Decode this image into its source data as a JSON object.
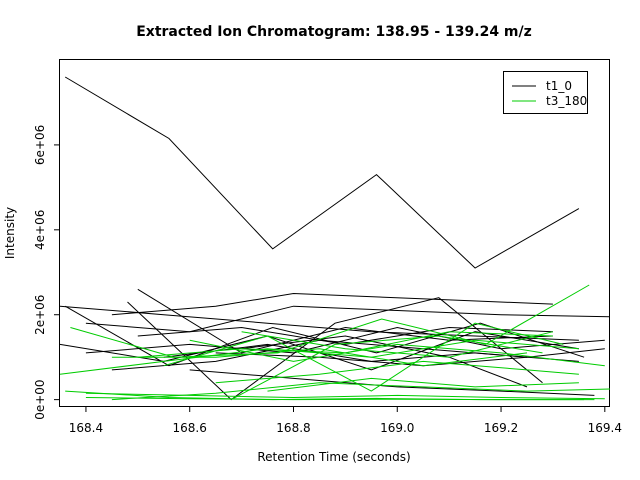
{
  "chart_data": {
    "type": "line",
    "title": "Extracted Ion Chromatogram: 138.95 - 139.24 m/z",
    "xlabel": "Retention Time (seconds)",
    "ylabel": "Intensity",
    "xlim": [
      168.35,
      169.41
    ],
    "ylim": [
      -150000,
      8000000
    ],
    "x_ticks": [
      168.4,
      168.6,
      168.8,
      169.0,
      169.2,
      169.4
    ],
    "x_tick_labels": [
      "168.4",
      "168.6",
      "168.8",
      "169.0",
      "169.2",
      "169.4"
    ],
    "y_ticks": [
      0,
      2000000,
      4000000,
      6000000
    ],
    "y_tick_labels": [
      "0e+00",
      "2e+06",
      "4e+06",
      "6e+06"
    ],
    "grid": false,
    "legend_position": "top-right",
    "legend": [
      {
        "label": "t1_0",
        "color": "#000000"
      },
      {
        "label": "t3_180",
        "color": "#00cc00"
      }
    ],
    "series": [
      {
        "group": "t1_0",
        "color": "#000000",
        "points": [
          [
            168.36,
            7600000
          ],
          [
            168.56,
            6150000
          ],
          [
            168.76,
            3550000
          ],
          [
            168.96,
            5300000
          ],
          [
            169.15,
            3100000
          ],
          [
            169.35,
            4500000
          ]
        ]
      },
      {
        "group": "t1_0",
        "color": "#000000",
        "points": [
          [
            168.35,
            2200000
          ],
          [
            168.55,
            2000000
          ],
          [
            168.75,
            1800000
          ],
          [
            168.95,
            1600000
          ],
          [
            169.15,
            1500000
          ],
          [
            169.35,
            1400000
          ]
        ]
      },
      {
        "group": "t1_0",
        "color": "#000000",
        "points": [
          [
            168.36,
            2200000
          ],
          [
            168.56,
            800000
          ],
          [
            168.76,
            1700000
          ],
          [
            168.96,
            1100000
          ],
          [
            169.16,
            1800000
          ],
          [
            169.36,
            1000000
          ]
        ]
      },
      {
        "group": "t1_0",
        "color": "#000000",
        "points": [
          [
            168.35,
            1300000
          ],
          [
            168.55,
            900000
          ],
          [
            168.75,
            1500000
          ],
          [
            168.95,
            700000
          ],
          [
            169.15,
            1600000
          ],
          [
            169.35,
            1200000
          ]
        ]
      },
      {
        "group": "t1_0",
        "color": "#000000",
        "points": [
          [
            168.4,
            1800000
          ],
          [
            168.6,
            1600000
          ],
          [
            168.8,
            2200000
          ],
          [
            169.0,
            2100000
          ],
          [
            169.2,
            2000000
          ],
          [
            169.41,
            1950000
          ]
        ]
      },
      {
        "group": "t1_0",
        "color": "#000000",
        "points": [
          [
            168.45,
            2000000
          ],
          [
            168.65,
            2200000
          ],
          [
            168.8,
            2500000
          ],
          [
            169.1,
            2350000
          ],
          [
            169.3,
            2250000
          ]
        ]
      },
      {
        "group": "t1_0",
        "color": "#000000",
        "points": [
          [
            168.5,
            2600000
          ],
          [
            168.7,
            1100000
          ],
          [
            168.9,
            1700000
          ],
          [
            169.1,
            1400000
          ],
          [
            169.3,
            1500000
          ]
        ]
      },
      {
        "group": "t1_0",
        "color": "#000000",
        "points": [
          [
            168.48,
            2300000
          ],
          [
            168.68,
            0
          ],
          [
            168.88,
            1800000
          ],
          [
            169.08,
            2400000
          ],
          [
            169.28,
            400000
          ]
        ]
      },
      {
        "group": "t1_0",
        "color": "#000000",
        "points": [
          [
            168.4,
            1100000
          ],
          [
            168.6,
            1300000
          ],
          [
            168.8,
            1100000
          ],
          [
            169.0,
            1700000
          ],
          [
            169.2,
            1200000
          ],
          [
            169.4,
            1400000
          ]
        ]
      },
      {
        "group": "t1_0",
        "color": "#000000",
        "points": [
          [
            168.45,
            700000
          ],
          [
            168.65,
            900000
          ],
          [
            168.85,
            1400000
          ],
          [
            169.05,
            1200000
          ],
          [
            169.25,
            1000000
          ]
        ]
      },
      {
        "group": "t1_0",
        "color": "#000000",
        "points": [
          [
            168.5,
            1500000
          ],
          [
            168.7,
            1700000
          ],
          [
            168.9,
            1300000
          ],
          [
            169.1,
            1700000
          ],
          [
            169.3,
            1600000
          ]
        ]
      },
      {
        "group": "t1_0",
        "color": "#000000",
        "points": [
          [
            168.55,
            1000000
          ],
          [
            168.75,
            1300000
          ],
          [
            168.95,
            900000
          ],
          [
            169.15,
            1100000
          ],
          [
            169.35,
            900000
          ]
        ]
      },
      {
        "group": "t1_0",
        "color": "#000000",
        "points": [
          [
            168.6,
            700000
          ],
          [
            168.8,
            500000
          ],
          [
            169.0,
            300000
          ],
          [
            169.2,
            200000
          ],
          [
            169.38,
            100000
          ]
        ]
      },
      {
        "group": "t1_0",
        "color": "#000000",
        "points": [
          [
            168.65,
            1100000
          ],
          [
            168.85,
            1000000
          ],
          [
            169.05,
            800000
          ],
          [
            169.25,
            1000000
          ],
          [
            169.4,
            1200000
          ]
        ]
      },
      {
        "group": "t1_0",
        "color": "#000000",
        "points": [
          [
            168.7,
            1200000
          ],
          [
            168.9,
            1500000
          ],
          [
            169.1,
            1000000
          ],
          [
            169.25,
            300000
          ]
        ]
      },
      {
        "group": "t3_180",
        "color": "#00cc00",
        "points": [
          [
            168.37,
            1700000
          ],
          [
            168.57,
            1000000
          ],
          [
            168.77,
            1100000
          ],
          [
            168.97,
            1900000
          ],
          [
            169.17,
            1300000
          ],
          [
            169.37,
            2700000
          ]
        ]
      },
      {
        "group": "t3_180",
        "color": "#00cc00",
        "points": [
          [
            168.35,
            600000
          ],
          [
            168.55,
            900000
          ],
          [
            168.75,
            1200000
          ],
          [
            168.95,
            1000000
          ],
          [
            169.15,
            1400000
          ],
          [
            169.35,
            1200000
          ]
        ]
      },
      {
        "group": "t3_180",
        "color": "#00cc00",
        "points": [
          [
            168.4,
            150000
          ],
          [
            168.6,
            100000
          ],
          [
            168.8,
            50000
          ],
          [
            169.0,
            100000
          ],
          [
            169.2,
            50000
          ],
          [
            169.4,
            20000
          ]
        ]
      },
      {
        "group": "t3_180",
        "color": "#00cc00",
        "points": [
          [
            168.36,
            200000
          ],
          [
            168.56,
            50000
          ],
          [
            168.76,
            0
          ],
          [
            168.96,
            30000
          ],
          [
            169.16,
            0
          ],
          [
            169.36,
            0
          ]
        ]
      },
      {
        "group": "t3_180",
        "color": "#00cc00",
        "points": [
          [
            168.45,
            0
          ],
          [
            168.65,
            150000
          ],
          [
            168.85,
            400000
          ],
          [
            169.05,
            300000
          ],
          [
            169.25,
            200000
          ],
          [
            169.41,
            250000
          ]
        ]
      },
      {
        "group": "t3_180",
        "color": "#00cc00",
        "points": [
          [
            168.5,
            1000000
          ],
          [
            168.7,
            1200000
          ],
          [
            168.9,
            1100000
          ],
          [
            169.1,
            1600000
          ],
          [
            169.3,
            1500000
          ]
        ]
      },
      {
        "group": "t3_180",
        "color": "#00cc00",
        "points": [
          [
            168.55,
            800000
          ],
          [
            168.75,
            1500000
          ],
          [
            168.95,
            200000
          ],
          [
            169.15,
            1800000
          ],
          [
            169.32,
            1300000
          ]
        ]
      },
      {
        "group": "t3_180",
        "color": "#00cc00",
        "points": [
          [
            168.6,
            1400000
          ],
          [
            168.8,
            900000
          ],
          [
            169.0,
            1300000
          ],
          [
            169.2,
            1100000
          ],
          [
            169.4,
            800000
          ]
        ]
      },
      {
        "group": "t3_180",
        "color": "#00cc00",
        "points": [
          [
            168.65,
            400000
          ],
          [
            168.85,
            600000
          ],
          [
            169.05,
            900000
          ],
          [
            169.25,
            700000
          ],
          [
            169.35,
            600000
          ]
        ]
      },
      {
        "group": "t3_180",
        "color": "#00cc00",
        "points": [
          [
            168.68,
            0
          ],
          [
            168.88,
            1300000
          ],
          [
            169.08,
            1500000
          ],
          [
            169.28,
            1100000
          ]
        ]
      },
      {
        "group": "t3_180",
        "color": "#00cc00",
        "points": [
          [
            168.7,
            1600000
          ],
          [
            168.9,
            1200000
          ],
          [
            169.1,
            1000000
          ],
          [
            169.3,
            1600000
          ]
        ]
      },
      {
        "group": "t3_180",
        "color": "#00cc00",
        "points": [
          [
            168.75,
            200000
          ],
          [
            168.95,
            500000
          ],
          [
            169.15,
            300000
          ],
          [
            169.35,
            400000
          ]
        ]
      },
      {
        "group": "t3_180",
        "color": "#00cc00",
        "points": [
          [
            168.45,
            1000000
          ],
          [
            168.65,
            1000000
          ],
          [
            168.85,
            1200000
          ],
          [
            169.05,
            800000
          ],
          [
            169.25,
            1100000
          ]
        ]
      },
      {
        "group": "t3_180",
        "color": "#00cc00",
        "points": [
          [
            168.4,
            50000
          ],
          [
            168.6,
            20000
          ],
          [
            168.8,
            0
          ],
          [
            169.0,
            10000
          ],
          [
            169.2,
            0
          ],
          [
            169.38,
            0
          ]
        ]
      }
    ]
  }
}
